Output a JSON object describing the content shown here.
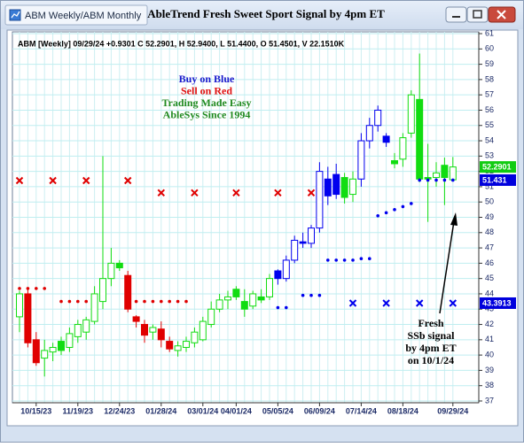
{
  "window": {
    "tab": "ABM Weekly/ABM Monthly",
    "title": "AbleTrend Fresh Sweet Sport Signal by 4pm ET"
  },
  "chart_data": {
    "type": "candlestick",
    "info": "ABM [Weekly] 09/29/24 +0.9301 C 52.2901, H 52.9400, L 51.4400, O 51.4501, V 22.1510K",
    "annotations": [
      {
        "text": "Buy on Blue",
        "color": "#1a1acc"
      },
      {
        "text": "Sell on Red",
        "color": "#e01010"
      },
      {
        "text": "Trading Made Easy",
        "color": "#208a20"
      },
      {
        "text": "AbleSys Since 1994",
        "color": "#208a20"
      }
    ],
    "note": [
      "Fresh",
      "SSb signal",
      "by 4pm ET",
      "on 10/1/24"
    ],
    "palette": {
      "green": "#11dd11",
      "red": "#e00000",
      "blue": "#0000ee"
    },
    "categories": [
      null,
      null,
      "10/15/23",
      null,
      null,
      null,
      null,
      "11/19/23",
      null,
      null,
      null,
      null,
      "12/24/23",
      null,
      null,
      null,
      null,
      "01/28/24",
      null,
      null,
      null,
      null,
      "03/01/24",
      null,
      null,
      null,
      "04/01/24",
      null,
      null,
      null,
      null,
      "05/05/24",
      null,
      null,
      null,
      null,
      "06/09/24",
      null,
      null,
      null,
      null,
      "07/14/24",
      null,
      null,
      null,
      null,
      "08/18/24",
      null,
      null,
      null,
      null,
      null,
      "09/29/24"
    ],
    "open": [
      42.5,
      44,
      41,
      39.8,
      40.2,
      40.9,
      40.5,
      41.2,
      41.5,
      42.2,
      43.5,
      45,
      46,
      45.2,
      42.5,
      42,
      41.5,
      41.7,
      40.9,
      40.3,
      40.5,
      40.8,
      41,
      42,
      43,
      43.6,
      44.3,
      43.5,
      43.2,
      43.8,
      43.8,
      45.5,
      45,
      46.2,
      47.4,
      47.3,
      48.3,
      51.5,
      51.8,
      51.6,
      50.5,
      51.5,
      54,
      55,
      54.3,
      52.7,
      52.8,
      54.5,
      56.7,
      51.6,
      51.6,
      52.4,
      51.4501
    ],
    "high": [
      44.2,
      44.3,
      41.5,
      41,
      40.8,
      41.2,
      41.8,
      42.3,
      42.5,
      44.5,
      53,
      47,
      46.2,
      45.5,
      42.6,
      42.3,
      42,
      42.2,
      41.2,
      40.9,
      41.2,
      41.8,
      42.5,
      43.5,
      44,
      44.2,
      44.5,
      44.3,
      44.2,
      44.3,
      45.3,
      45.6,
      46.5,
      47.8,
      48,
      48.5,
      52.6,
      52.3,
      52.5,
      51.9,
      52,
      54.5,
      55.5,
      56.3,
      54.5,
      53.2,
      54.5,
      57.3,
      59.7,
      53.8,
      52.6,
      52.9,
      52.94
    ],
    "low": [
      41.5,
      40.5,
      39.3,
      38.6,
      39.6,
      40,
      40.2,
      40.8,
      41,
      42,
      43,
      44.5,
      45.5,
      42.8,
      41.8,
      40.8,
      41,
      40.5,
      40.2,
      39.9,
      40.2,
      40.5,
      40.9,
      41.8,
      42.8,
      43,
      43.6,
      42.5,
      43,
      43.4,
      43.6,
      44.6,
      44.8,
      46,
      47,
      47,
      48,
      49.8,
      50.2,
      49.9,
      50,
      51,
      53.5,
      54.6,
      53.6,
      52.2,
      52.3,
      54.2,
      51.3,
      48.7,
      51,
      49.8,
      51.44
    ],
    "close": [
      44,
      40.8,
      39.5,
      40.3,
      40.5,
      40.3,
      41.4,
      42,
      42.3,
      44,
      45,
      46,
      45.7,
      43,
      42.2,
      41.3,
      41.8,
      41,
      40.4,
      40.6,
      40.9,
      41.5,
      42.2,
      43,
      43.6,
      43.8,
      43.8,
      43,
      44,
      43.6,
      45,
      45,
      46.2,
      47.5,
      47.3,
      48.3,
      52,
      50.4,
      50.5,
      50.3,
      51.5,
      54,
      55,
      56,
      53.9,
      52.5,
      54.2,
      57,
      51.5,
      51.5,
      51.9,
      51.6,
      52.2901
    ],
    "candle_colors": [
      "green",
      "red",
      "red",
      "green",
      "green",
      "green",
      "green",
      "green",
      "green",
      "green",
      "green",
      "green",
      "green",
      "red",
      "red",
      "red",
      "green",
      "red",
      "red",
      "green",
      "green",
      "green",
      "green",
      "green",
      "green",
      "green",
      "green",
      "green",
      "green",
      "green",
      "green",
      "blue",
      "blue",
      "blue",
      "blue",
      "blue",
      "blue",
      "blue",
      "blue",
      "green",
      "green",
      "blue",
      "blue",
      "blue",
      "blue",
      "green",
      "green",
      "green",
      "green",
      "green",
      "green",
      "green",
      "green"
    ],
    "stops": [
      44.35,
      44.35,
      44.35,
      44.35,
      null,
      43.5,
      43.5,
      43.5,
      43.5,
      null,
      null,
      null,
      null,
      null,
      43.5,
      43.5,
      43.5,
      43.5,
      43.5,
      43.5,
      43.5,
      null,
      null,
      null,
      null,
      null,
      null,
      null,
      null,
      null,
      null,
      43.1,
      43.1,
      null,
      43.9,
      43.9,
      43.9,
      46.2,
      46.2,
      46.2,
      46.2,
      46.3,
      46.3,
      49.1,
      49.3,
      49.5,
      49.7,
      49.9,
      51.43,
      51.43,
      51.43,
      51.43,
      51.43
    ],
    "stop_colors": [
      "red",
      "red",
      "red",
      "red",
      null,
      "red",
      "red",
      "red",
      "red",
      null,
      null,
      null,
      null,
      null,
      "red",
      "red",
      "red",
      "red",
      "red",
      "red",
      "red",
      null,
      null,
      null,
      null,
      null,
      null,
      null,
      null,
      null,
      null,
      "blue",
      "blue",
      null,
      "blue",
      "blue",
      "blue",
      "blue",
      "blue",
      "blue",
      "blue",
      "blue",
      "blue",
      "blue",
      "blue",
      "blue",
      "blue",
      "blue",
      "blue",
      "blue",
      "blue",
      "blue",
      "blue"
    ],
    "signals": [
      51.4,
      null,
      null,
      null,
      51.4,
      null,
      null,
      null,
      51.4,
      null,
      null,
      null,
      null,
      51.4,
      null,
      null,
      null,
      50.6,
      null,
      null,
      null,
      50.6,
      null,
      null,
      null,
      null,
      50.6,
      null,
      null,
      null,
      null,
      50.6,
      null,
      null,
      null,
      50.6,
      null,
      null,
      null,
      null,
      43.39,
      null,
      null,
      null,
      43.39,
      null,
      null,
      null,
      43.39,
      null,
      null,
      null,
      43.39
    ],
    "signal_colors": [
      "red",
      null,
      null,
      null,
      "red",
      null,
      null,
      null,
      "red",
      null,
      null,
      null,
      null,
      "red",
      null,
      null,
      null,
      "red",
      null,
      null,
      null,
      "red",
      null,
      null,
      null,
      null,
      "red",
      null,
      null,
      null,
      null,
      "red",
      null,
      null,
      null,
      "red",
      null,
      null,
      null,
      null,
      "blue",
      null,
      null,
      null,
      "blue",
      null,
      null,
      null,
      "blue",
      null,
      null,
      null,
      "blue"
    ],
    "price_tags": [
      {
        "value": 52.2901,
        "color": "#11cc11"
      },
      {
        "value": 51.431,
        "color": "#0000dd"
      },
      {
        "value": 43.3913,
        "color": "#0000dd"
      }
    ],
    "ylim": [
      37,
      61
    ],
    "yticks": [
      37,
      38,
      39,
      40,
      41,
      42,
      43,
      44,
      45,
      46,
      47,
      48,
      49,
      50,
      51,
      52,
      53,
      54,
      55,
      56,
      57,
      58,
      59,
      60,
      61
    ],
    "grid": true
  }
}
